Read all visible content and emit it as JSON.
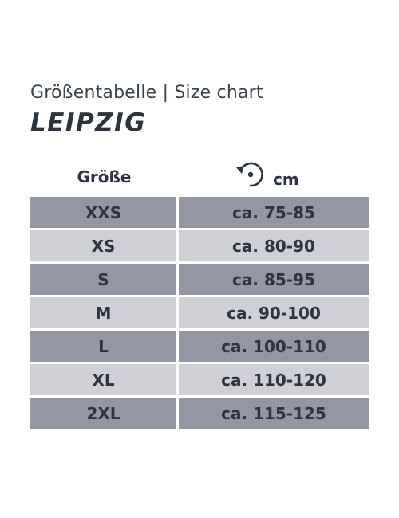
{
  "subtitle": "Größentabelle | Size chart",
  "title": "LEIPZIG",
  "header": {
    "size_label": "Größe",
    "circumference_icon": "circumference-arrow-icon",
    "unit_label": "cm"
  },
  "colors": {
    "text": "#2c3440",
    "row_dark": "#9497a3",
    "row_light": "#cfcfd6"
  },
  "rows": [
    {
      "size": "XXS",
      "range": "ca. 75-85"
    },
    {
      "size": "XS",
      "range": "ca. 80-90"
    },
    {
      "size": "S",
      "range": "ca. 85-95"
    },
    {
      "size": "M",
      "range": "ca. 90-100"
    },
    {
      "size": "L",
      "range": "ca. 100-110"
    },
    {
      "size": "XL",
      "range": "ca. 110-120"
    },
    {
      "size": "2XL",
      "range": "ca. 115-125"
    }
  ]
}
